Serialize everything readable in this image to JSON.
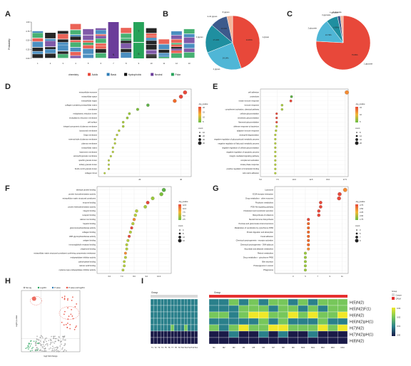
{
  "panel_labels": [
    "A",
    "B",
    "C",
    "D",
    "E",
    "F",
    "G",
    "H",
    "I"
  ],
  "colors": {
    "acidic": "#e8483a",
    "basic": "#2c7bb6",
    "hydrophobic": "#000000",
    "neutral": "#6a3d9a",
    "polar": "#27a35a",
    "grid": "#bbbbbb"
  },
  "chart_data": [
    {
      "panel": "A",
      "type": "other",
      "ylabel": "Probability",
      "yticks": [
        "1.00",
        "0.75",
        "0.50",
        "0.25",
        "0.00"
      ],
      "x": [
        "1",
        "2",
        "3",
        "4",
        "5",
        "6",
        "7",
        "8",
        "9",
        "10",
        "11",
        "12",
        "13"
      ],
      "big_letters": [
        {
          "pos": 7,
          "letter": "N",
          "color": "neutral"
        },
        {
          "pos": 9,
          "letter": "T",
          "color": "polar"
        },
        {
          "pos": 9,
          "letter": "S",
          "color": "polar"
        }
      ],
      "legend_title": "chemistry",
      "legend": [
        {
          "name": "Acidic",
          "color": "acidic"
        },
        {
          "name": "Basic",
          "color": "basic"
        },
        {
          "name": "Hydrophobic",
          "color": "hydrophobic"
        },
        {
          "name": "Neutral",
          "color": "neutral"
        },
        {
          "name": "Polar",
          "color": "polar"
        }
      ]
    },
    {
      "panel": "B",
      "type": "pie",
      "slices": [
        {
          "label": "1 glycan",
          "value": 44.83,
          "color": "#e8483a"
        },
        {
          "label": "2 glycan",
          "value": 24.14,
          "color": "#4fb6d6"
        },
        {
          "label": "3 glycan",
          "value": 17.24,
          "color": "#1f8fa0"
        },
        {
          "label": "4~10 glycan",
          "value": 10.34,
          "color": "#3d5a8c"
        },
        {
          "label": "8 glycan",
          "value": 3.45,
          "color": "#f3b49b"
        }
      ]
    },
    {
      "panel": "C",
      "type": "pie",
      "slices": [
        {
          "label": "1 glycosite",
          "value": 75.86,
          "color": "#e8483a"
        },
        {
          "label": "2 glycosite",
          "value": 13.79,
          "color": "#4fb6d6"
        },
        {
          "label": "3 glycosite",
          "value": 6.9,
          "color": "#1f8fa0"
        },
        {
          "label": "4 glycosite",
          "value": 1.72,
          "color": "#3d5a8c"
        },
        {
          "label": "8 glycosite",
          "value": 1.72,
          "color": "#f3b49b"
        }
      ]
    },
    {
      "panel": "D",
      "type": "scatter",
      "terms": [
        "extracellular exosome",
        "extracellular space",
        "extracellular region",
        "collagen-containing extracellular matrix",
        "membrane",
        "endoplasmic reticulum lumen",
        "endoplasmic reticulum membrane",
        "cell surface",
        "integral component of plasma membrane",
        "lysosomal membrane",
        "Golgi membrane",
        "external side of plasma membrane",
        "plasma membrane",
        "extracellular matrix",
        "basement membrane",
        "azurophil granule membrane",
        "specific granule lumen",
        "tertiary granule lumen",
        "ficolin-1-rich granule lumen",
        "collagen trimer"
      ],
      "values": [
        42,
        40,
        37,
        24,
        19,
        15,
        14,
        12,
        12,
        10,
        9,
        8,
        8,
        7,
        7,
        6,
        5,
        5,
        5,
        3
      ],
      "dotcolor": [
        "#e8483a",
        "#e8483a",
        "#f06a2a",
        "#5eb147",
        "#7bbf3a",
        "#9ac93a",
        "#9ac93a",
        "#a8cb3c",
        "#a8cb3c",
        "#b5cf3c",
        "#b5cf3c",
        "#b5cf3c",
        "#b5cf3c",
        "#b5cf3c",
        "#b5cf3c",
        "#b5cf3c",
        "#b5cf3c",
        "#b5cf3c",
        "#b5cf3c",
        "#b5cf3c"
      ],
      "xlim": [
        0,
        45
      ],
      "xticks": [
        20,
        40
      ],
      "legend_title": "-log_pvalue",
      "legend_values": [
        "20",
        "15",
        "10",
        "5"
      ],
      "size_title": "count",
      "size_values": [
        "10",
        "20",
        "30",
        "40"
      ]
    },
    {
      "panel": "E",
      "type": "scatter",
      "terms": [
        "cell adhesion",
        "proteolysis",
        "innate immune response",
        "immune response",
        "complement activation, classical pathway",
        "cellular glucuronidation",
        "xenobiotic glucuronidation",
        "flavonoid glucuronidation",
        "defense response to bacterium",
        "adaptive immune response",
        "neutrophil degranulation",
        "negative regulation of glucocorticoid metabolic process",
        "negative regulation of fatty acid metabolic process",
        "negative regulation of cellular glucuronidation",
        "negative regulation of apoptotic process",
        "integrin-mediated signaling pathway",
        "complement activation",
        "innate phase response",
        "positive regulation of interleukin binding",
        "cell-matrix adhesion"
      ],
      "values": [
        17.8,
        9.6,
        9.5,
        8.2,
        8.2,
        7.4,
        7.4,
        7.4,
        7.4,
        7.3,
        7.2,
        7.2,
        7.2,
        7.2,
        7.2,
        7.2,
        7.2,
        7.2,
        7.2,
        7.2
      ],
      "dotcolor": [
        "#f58b32",
        "#5eb147",
        "#e8483a",
        "#a8cb3c",
        "#a8cb3c",
        "#e8483a",
        "#e8483a",
        "#e8483a",
        "#b5cf3c",
        "#b5cf3c",
        "#b5cf3c",
        "#b5cf3c",
        "#b5cf3c",
        "#b5cf3c",
        "#b5cf3c",
        "#b5cf3c",
        "#b5cf3c",
        "#b5cf3c",
        "#b5cf3c",
        "#b5cf3c"
      ],
      "xlim": [
        5,
        18
      ],
      "xticks": [
        "5.0",
        "7.5",
        "10.0",
        "12.5",
        "15.0",
        "17.5"
      ],
      "size_title": "count",
      "size_values": [
        "8",
        "12",
        "16",
        "20"
      ],
      "legend_title": "-log_pvalue",
      "legend_values": [
        "15",
        "10",
        "5"
      ]
    },
    {
      "panel": "F",
      "type": "scatter",
      "terms": [
        "identical protein binding",
        "protein homodimerization activity",
        "extracellular matrix structural constituent",
        "enzyme binding",
        "protein heterodimerization activity",
        "integrin binding",
        "receptor binding",
        "calcium ion binding",
        "heparin binding",
        "glucuronosyltransferase activity",
        "collagen binding",
        "UDP-glycosyltransferase activity",
        "antigen binding",
        "immunoglobulin receptor binding",
        "chaperone binding",
        "extracellular matrix structural constituent conferring compression resistance",
        "endopeptidase inhibitor activity",
        "carbohydrate binding",
        "retinoic acid binding",
        "cysteine-type endopeptidase inhibitor activity"
      ],
      "values": [
        10.4,
        10.2,
        9.5,
        9.1,
        8.9,
        8.2,
        8.1,
        8.0,
        7.9,
        7.8,
        7.7,
        7.6,
        7.5,
        7.4,
        7.4,
        7.3,
        7.3,
        7.2,
        7.2,
        7.1
      ],
      "dotcolor": [
        "#5eb147",
        "#7bbf3a",
        "#9ac93a",
        "#e8483a",
        "#a8cb3c",
        "#b5cf3c",
        "#b5cf3c",
        "#f58b32",
        "#b5cf3c",
        "#e8483a",
        "#b5cf3c",
        "#e8483a",
        "#b5cf3c",
        "#b5cf3c",
        "#b5cf3c",
        "#f58b32",
        "#b5cf3c",
        "#b5cf3c",
        "#b5cf3c",
        "#b5cf3c"
      ],
      "xlim": [
        5,
        11
      ],
      "xticks": [
        "6.0",
        "7.0",
        "8.0",
        "9.0",
        "10.0"
      ],
      "size_title": "count",
      "size_values": [
        "4",
        "8",
        "12",
        "16"
      ],
      "legend_title": "-log_pvalue",
      "legend_values": [
        "12.5",
        "10.0",
        "7.5",
        "5.0",
        "2.5"
      ]
    },
    {
      "panel": "G",
      "type": "scatter",
      "terms": [
        "Lysosome",
        "ECM-receptor interaction",
        "Drug metabolism - other enzymes",
        "Porphyrin metabolism",
        "PI3K-Akt signaling pathway",
        "Cholesterol and xenobiotic secretion",
        "Biosynthesis of cofactors",
        "Steroid hormone biosynthesis",
        "Pentose and glucuronate interconversions",
        "Metabolism of xenobiotics by cytochrome P450",
        "Protein digestion and absorption",
        "Focal adhesion",
        "Chemical carcinogenesis - receptor activation",
        "Chemical carcinogenesis - DNA adducts",
        "Ascorbate and aldarate metabolism",
        "Retinol metabolism",
        "Drug metabolism - cytochrome P450",
        "Bile secretion",
        "Proteoglycans in cancer",
        "Phagosome"
      ],
      "values": [
        11.5,
        10.6,
        10.5,
        7.5,
        7.5,
        7.2,
        7.2,
        5.5,
        5.5,
        5.5,
        5.5,
        5.5,
        5.5,
        5.5,
        5.5,
        5.0,
        5.0,
        5.0,
        5.0,
        5.0
      ],
      "dotcolor": [
        "#f58b32",
        "#e8483a",
        "#e8483a",
        "#e8483a",
        "#e8483a",
        "#e8483a",
        "#e8483a",
        "#e8483a",
        "#f06a2a",
        "#f06a2a",
        "#f06a2a",
        "#f06a2a",
        "#f06a2a",
        "#f06a2a",
        "#f58b32",
        "#9ac93a",
        "#9ac93a",
        "#9ac93a",
        "#9ac93a",
        "#9ac93a"
      ],
      "xlim": [
        0,
        12
      ],
      "xticks": [
        "3",
        "5",
        "7",
        "9",
        "11"
      ],
      "size_title": "count",
      "size_values": [
        "3",
        "5",
        "7",
        "9"
      ],
      "legend_title": "-log_pvalue",
      "legend_values": [
        "2.75",
        "2.50",
        "2.25",
        "2.00",
        "1.75"
      ]
    },
    {
      "panel": "H",
      "type": "scatter",
      "xlabel": "log2 fold change",
      "ylabel": "-log10 p-value",
      "legend": [
        {
          "name": "Not sig",
          "color": "#999999"
        },
        {
          "name": "Log2FC",
          "color": "#27a35a"
        },
        {
          "name": "P-value",
          "color": "#2c7bb6"
        },
        {
          "name": "P-value and log2FC",
          "color": "#e8483a"
        }
      ],
      "xlim": [
        -3,
        3
      ],
      "ylim": [
        0,
        6
      ]
    },
    {
      "panel": "I",
      "type": "heatmap",
      "group_label": "Group",
      "legend_group_title": "Group",
      "legend_groups": [
        {
          "name": "Cancer",
          "color": "#d9d9d9"
        },
        {
          "name": "CPLM",
          "color": "#e63030"
        }
      ],
      "rows": [
        "H(5)N(2)",
        "H(5)N(2)F(1)",
        "H(6)N(2)",
        "H(6)N(2)pH(1)",
        "H(7)N(2)",
        "H(7)N(2)pH(1)",
        "H(8)N(2)"
      ],
      "cols_left": [
        "T1",
        "T2",
        "T3",
        "T4",
        "T5",
        "T6",
        "T7",
        "T8",
        "T9",
        "T10",
        "T11",
        "T12",
        "T13",
        "T14"
      ],
      "cols_right": [
        "M1",
        "M2",
        "M3",
        "M4",
        "M5",
        "M6",
        "M7",
        "M8",
        "M9",
        "M10",
        "M11",
        "M12",
        "M13",
        "M14"
      ],
      "values_left": [
        [
          0.01,
          0.01,
          0.01,
          0.01,
          0.01,
          0.01,
          0.01,
          0.01,
          0.01,
          0.01,
          0.01,
          0.01,
          0.01,
          0.01
        ],
        [
          0.01,
          0.01,
          0.01,
          0.01,
          0.01,
          0.01,
          0.01,
          0.01,
          0.01,
          0.01,
          0.01,
          0.01,
          0.01,
          0.01
        ],
        [
          0.01,
          0.01,
          0.01,
          0.01,
          0.01,
          0.01,
          0.01,
          0.01,
          0.01,
          0.01,
          0.01,
          0.01,
          0.01,
          0.01
        ],
        [
          0.01,
          0.01,
          0.01,
          0.01,
          0.01,
          0.01,
          0.01,
          0.01,
          0.01,
          0.01,
          0.01,
          0.01,
          0.01,
          0.01
        ],
        [
          0.01,
          0.01,
          0.01,
          0.01,
          0.01,
          0.01,
          0.02,
          0.01,
          0.01,
          0.01,
          0.02,
          0.01,
          0.01,
          0.01
        ],
        [
          0.0,
          0.0,
          0.0,
          0.0,
          0.0,
          0.0,
          0.0,
          0.0,
          0.0,
          0.0,
          0.0,
          0.0,
          0.0,
          0.0
        ],
        [
          0.0,
          0.0,
          0.0,
          0.0,
          0.0,
          0.0,
          0.0,
          0.0,
          0.0,
          0.0,
          0.0,
          0.0,
          0.0,
          0.0
        ]
      ],
      "values_right": [
        [
          0.01,
          0.01,
          0.02,
          0.01,
          0.02,
          0.01,
          0.02,
          0.02,
          0.01,
          0.02,
          0.01,
          0.02,
          0.02,
          0.02
        ],
        [
          0.01,
          0.01,
          0.01,
          0.02,
          0.02,
          0.02,
          0.01,
          0.02,
          0.02,
          0.01,
          0.02,
          0.01,
          0.02,
          0.02
        ],
        [
          0.02,
          0.02,
          0.01,
          0.02,
          0.03,
          0.03,
          0.02,
          0.02,
          0.03,
          0.02,
          0.03,
          0.02,
          0.02,
          0.03
        ],
        [
          0.01,
          0.01,
          0.01,
          0.01,
          0.01,
          0.02,
          0.01,
          0.02,
          0.01,
          0.01,
          0.01,
          0.02,
          0.01,
          0.01
        ],
        [
          0.02,
          0.01,
          0.02,
          0.03,
          0.02,
          0.02,
          0.03,
          0.03,
          0.02,
          0.02,
          0.02,
          0.03,
          0.02,
          0.03
        ],
        [
          0.0,
          0.0,
          0.01,
          0.0,
          0.0,
          0.01,
          0.0,
          0.01,
          0.0,
          0.0,
          0.01,
          0.0,
          0.0,
          0.0
        ],
        [
          0.0,
          0.0,
          0.0,
          0.0,
          0.0,
          0.0,
          0.0,
          0.0,
          0.0,
          0.0,
          0.0,
          0.0,
          0.0,
          0.0
        ]
      ],
      "scale_values": [
        "0.03",
        "0.02",
        "0.01",
        "0.00"
      ]
    }
  ]
}
